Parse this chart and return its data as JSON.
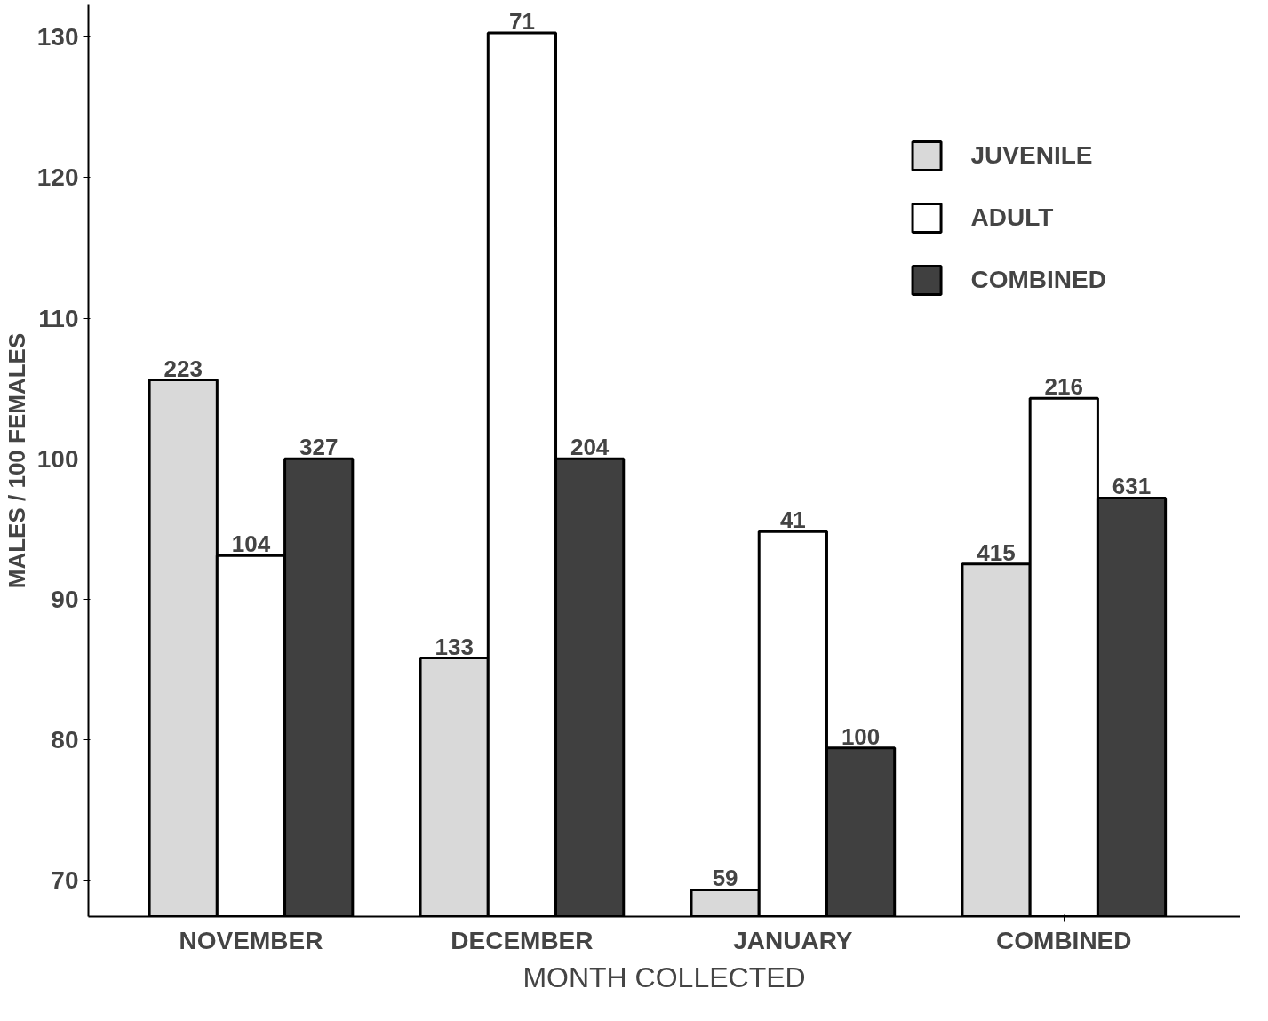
{
  "chart_data": {
    "type": "bar",
    "xlabel": "MONTH COLLECTED",
    "ylabel": "MALES / 100 FEMALES",
    "categories": [
      "NOVEMBER",
      "DECEMBER",
      "JANUARY",
      "COMBINED"
    ],
    "series": [
      {
        "name": "JUVENILE",
        "color": "#d9d9d9",
        "values": [
          105.6,
          85.8,
          69.3,
          92.5
        ]
      },
      {
        "name": "ADULT",
        "color": "#ffffff",
        "values": [
          93.1,
          130.3,
          94.8,
          104.3
        ]
      },
      {
        "name": "COMBINED",
        "color": "#404040",
        "values": [
          100,
          100,
          79.4,
          97.2
        ]
      }
    ],
    "annotations": [
      "223",
      "104",
      "327",
      "133",
      "71",
      "204",
      "59",
      "41",
      "100",
      "415",
      "216",
      "631"
    ],
    "ylim": [
      67.4,
      132.3
    ],
    "yticks": [
      70,
      80,
      90,
      100,
      110,
      120,
      130
    ],
    "grid": false,
    "legend": "top right"
  }
}
